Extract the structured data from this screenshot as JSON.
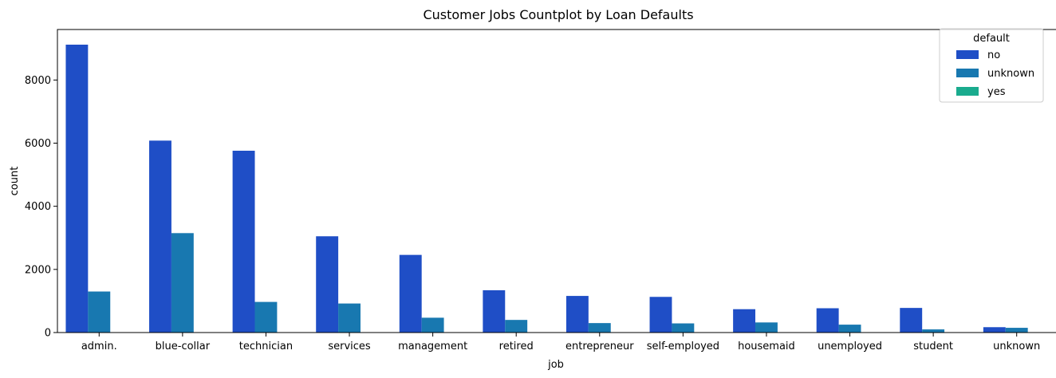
{
  "chart_data": {
    "type": "bar",
    "title": "Customer Jobs Countplot by Loan Defaults",
    "xlabel": "job",
    "ylabel": "count",
    "ylim": [
      0,
      9600
    ],
    "yticks": [
      0,
      2000,
      4000,
      6000,
      8000
    ],
    "grid": false,
    "legend": {
      "title": "default",
      "placement": "top-right"
    },
    "categories": [
      "admin.",
      "blue-collar",
      "technician",
      "services",
      "management",
      "retired",
      "entrepreneur",
      "self-employed",
      "housemaid",
      "unemployed",
      "student",
      "unknown"
    ],
    "series": [
      {
        "name": "no",
        "color": "#1f4ec6",
        "values": [
          9120,
          6080,
          5760,
          3050,
          2460,
          1340,
          1160,
          1130,
          740,
          770,
          780,
          170
        ]
      },
      {
        "name": "unknown",
        "color": "#1878b0",
        "values": [
          1300,
          3150,
          970,
          920,
          470,
          400,
          300,
          290,
          320,
          250,
          100,
          150
        ]
      },
      {
        "name": "yes",
        "color": "#1aab8e",
        "values": [
          0,
          0,
          3,
          0,
          0,
          0,
          0,
          0,
          0,
          0,
          0,
          0
        ]
      }
    ]
  }
}
